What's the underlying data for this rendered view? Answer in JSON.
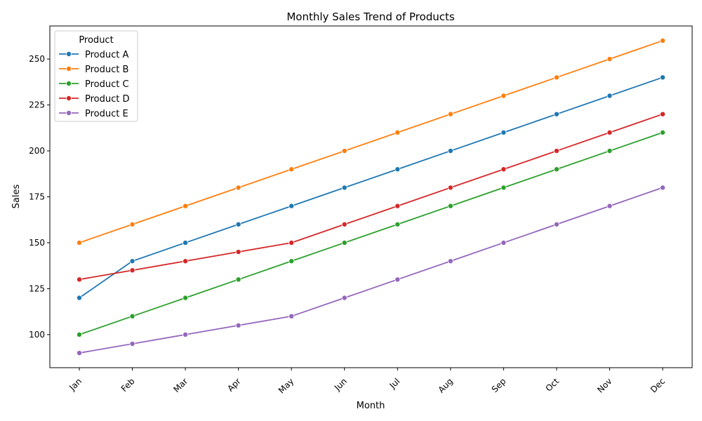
{
  "chart_data": {
    "type": "line",
    "title": "Monthly Sales Trend of Products",
    "xlabel": "Month",
    "ylabel": "Sales",
    "categories": [
      "Jan",
      "Feb",
      "Mar",
      "Apr",
      "May",
      "Jun",
      "Jul",
      "Aug",
      "Sep",
      "Oct",
      "Nov",
      "Dec"
    ],
    "ylim": [
      82,
      268
    ],
    "yticks": [
      100,
      125,
      150,
      175,
      200,
      225,
      250
    ],
    "legend": {
      "title": "Product",
      "placement": "top-left"
    },
    "grid": false,
    "series": [
      {
        "name": "Product A",
        "color": "#1f77b4",
        "values": [
          120,
          140,
          150,
          160,
          170,
          180,
          190,
          200,
          210,
          220,
          230,
          240
        ]
      },
      {
        "name": "Product B",
        "color": "#ff7f0e",
        "values": [
          150,
          160,
          170,
          180,
          190,
          200,
          210,
          220,
          230,
          240,
          250,
          260
        ]
      },
      {
        "name": "Product C",
        "color": "#2ca02c",
        "values": [
          100,
          110,
          120,
          130,
          140,
          150,
          160,
          170,
          180,
          190,
          200,
          210
        ]
      },
      {
        "name": "Product D",
        "color": "#d62728",
        "values": [
          130,
          135,
          140,
          145,
          150,
          160,
          170,
          180,
          190,
          200,
          210,
          220
        ]
      },
      {
        "name": "Product E",
        "color": "#9467bd",
        "values": [
          90,
          95,
          100,
          105,
          110,
          120,
          130,
          140,
          150,
          160,
          170,
          180
        ]
      }
    ]
  }
}
